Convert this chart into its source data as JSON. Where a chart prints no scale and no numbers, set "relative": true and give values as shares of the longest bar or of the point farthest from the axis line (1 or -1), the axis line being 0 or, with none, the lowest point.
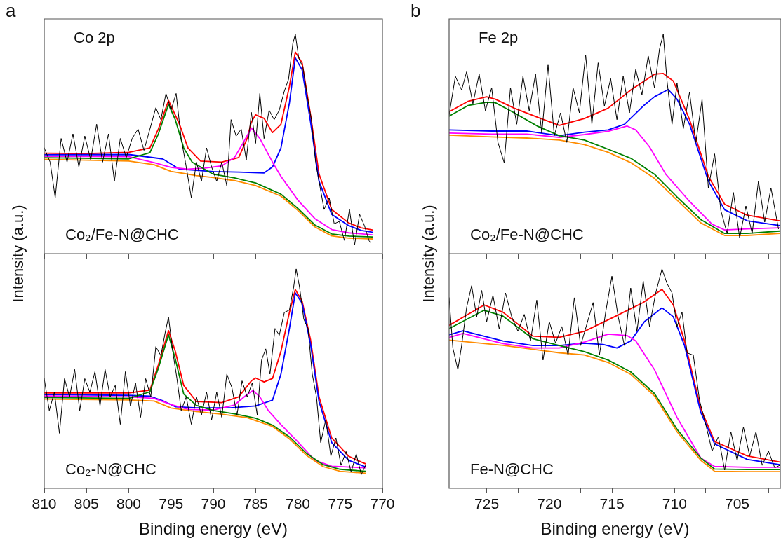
{
  "chart_data": [
    {
      "type": "line",
      "title": "a",
      "ylabel": "Intensity (a.u.)",
      "relative": true,
      "xlim": [
        810,
        770
      ],
      "xticks": [
        810,
        805,
        800,
        795,
        790,
        785,
        780,
        775,
        770
      ],
      "tick_labels": false,
      "annotations": [
        "Co 2p",
        "Co₂/Fe-N@CHC"
      ],
      "series": [
        {
          "color": "#000000",
          "x": [
            810,
            809.3,
            808.7,
            808,
            807.3,
            806.6,
            805.9,
            805.2,
            804.5,
            803.8,
            803.1,
            802.4,
            801.7,
            801,
            800.3,
            799.6,
            798.9,
            798.2,
            797.5,
            796.8,
            796.2,
            795.6,
            795,
            794.4,
            793.8,
            793.3,
            792.6,
            792,
            791.4,
            790.8,
            790.2,
            789.6,
            789,
            788.4,
            787.9,
            787.3,
            786.7,
            786.1,
            785.5,
            785,
            784.5,
            784,
            783.4,
            782.8,
            782.2,
            781.6,
            781.1,
            780.6,
            780.3,
            779.9,
            779.4,
            778.9,
            778.4,
            777.9,
            777.4,
            776.9,
            776.3,
            775.7,
            775.1,
            774.5,
            773.9,
            773.3,
            772.7,
            772.1,
            771.6,
            771.4
          ],
          "values": [
            0.482,
            0.417,
            0.255,
            0.525,
            0.417,
            0.546,
            0.395,
            0.536,
            0.428,
            0.59,
            0.417,
            0.546,
            0.33,
            0.525,
            0.438,
            0.525,
            0.568,
            0.471,
            0.568,
            0.665,
            0.611,
            0.73,
            0.654,
            0.73,
            0.525,
            0.417,
            0.255,
            0.417,
            0.33,
            0.482,
            0.395,
            0.33,
            0.417,
            0.309,
            0.611,
            0.536,
            0.568,
            0.428,
            0.644,
            0.503,
            0.73,
            0.525,
            0.654,
            0.611,
            0.654,
            0.741,
            0.795,
            0.957,
            1,
            0.892,
            0.849,
            0.719,
            0.611,
            0.417,
            0.309,
            0.201,
            0.255,
            0.136,
            0.147,
            0.06,
            0.201,
            0.039,
            0.179,
            0.125,
            0.06,
            0.05
          ]
        },
        {
          "color": "#ff8c00",
          "x": [
            810,
            800,
            797,
            795,
            792,
            790,
            787.5,
            785,
            782,
            780,
            778,
            776,
            774,
            771.2
          ],
          "values": [
            0.43,
            0.422,
            0.405,
            0.375,
            0.356,
            0.347,
            0.333,
            0.31,
            0.262,
            0.197,
            0.122,
            0.081,
            0.071,
            0.067
          ]
        },
        {
          "color": "#008000",
          "x": [
            810,
            800,
            797.5,
            796.5,
            795.3,
            794.5,
            793.5,
            792.5,
            790,
            787.5,
            785,
            782,
            780,
            778,
            776,
            774,
            771.2
          ],
          "values": [
            0.437,
            0.432,
            0.46,
            0.546,
            0.68,
            0.611,
            0.482,
            0.417,
            0.362,
            0.345,
            0.322,
            0.271,
            0.206,
            0.131,
            0.09,
            0.08,
            0.076
          ]
        },
        {
          "color": "#ff00ff",
          "x": [
            810,
            800,
            797,
            795,
            793,
            791,
            789,
            787.5,
            786.5,
            785.5,
            784.5,
            783,
            782,
            780,
            778,
            776,
            774,
            771.2
          ],
          "values": [
            0.444,
            0.442,
            0.415,
            0.393,
            0.385,
            0.39,
            0.4,
            0.438,
            0.503,
            0.573,
            0.525,
            0.417,
            0.352,
            0.244,
            0.16,
            0.11,
            0.095,
            0.086
          ]
        },
        {
          "color": "#0000ff",
          "x": [
            810,
            800,
            796,
            794,
            790,
            787,
            784,
            783,
            782,
            781,
            780.3,
            779.5,
            778.5,
            777.5,
            776,
            774,
            772.5,
            771.2
          ],
          "values": [
            0.451,
            0.452,
            0.432,
            0.385,
            0.374,
            0.372,
            0.368,
            0.395,
            0.482,
            0.687,
            0.892,
            0.838,
            0.6,
            0.33,
            0.179,
            0.128,
            0.106,
            0.098
          ]
        },
        {
          "color": "#ff0000",
          "x": [
            810,
            805,
            800,
            797.5,
            796.5,
            795.3,
            794,
            793,
            791.5,
            789,
            787,
            786,
            785.5,
            785,
            784,
            783,
            782,
            781,
            780.3,
            779.5,
            778.5,
            777.5,
            776,
            774,
            772.5,
            771.2
          ],
          "values": [
            0.458,
            0.456,
            0.462,
            0.482,
            0.568,
            0.698,
            0.59,
            0.482,
            0.422,
            0.417,
            0.438,
            0.525,
            0.6,
            0.633,
            0.617,
            0.552,
            0.59,
            0.762,
            0.919,
            0.87,
            0.633,
            0.363,
            0.201,
            0.14,
            0.118,
            0.108
          ]
        }
      ]
    },
    {
      "type": "line",
      "xlabel": "Binding energy (eV)",
      "relative": true,
      "xlim": [
        810,
        770
      ],
      "xticks": [
        810,
        805,
        800,
        795,
        790,
        785,
        780,
        775,
        770
      ],
      "tick_labels": "x",
      "annotations": [
        "Co₂-N@CHC"
      ],
      "series": [
        {
          "color": "#000000",
          "x": [
            810,
            809.4,
            808.8,
            808.2,
            807.6,
            807,
            806.4,
            805.8,
            805.2,
            804.6,
            804,
            803.4,
            802.8,
            802.2,
            801.6,
            801,
            800.4,
            799.8,
            799.2,
            798.6,
            798,
            797.4,
            796.8,
            796.2,
            795.7,
            795.3,
            794.8,
            794.3,
            793.8,
            793.2,
            792.6,
            792,
            791.4,
            790.8,
            790.2,
            789.6,
            789,
            788.4,
            787.8,
            787.2,
            786.6,
            786,
            785.4,
            784.8,
            784.3,
            783.8,
            783.3,
            782.7,
            782.2,
            781.6,
            781,
            780.5,
            780.2,
            779.8,
            779.3,
            778.8,
            778.3,
            777.8,
            777.3,
            776.7,
            776.1,
            775.5,
            774.9,
            774.3,
            773.7,
            773.1,
            772.5,
            772
          ],
          "values": [
            0.5,
            0.355,
            0.438,
            0.251,
            0.5,
            0.417,
            0.542,
            0.355,
            0.5,
            0.438,
            0.532,
            0.376,
            0.542,
            0.417,
            0.469,
            0.292,
            0.532,
            0.376,
            0.48,
            0.324,
            0.5,
            0.417,
            0.646,
            0.605,
            0.709,
            0.781,
            0.625,
            0.5,
            0.355,
            0.417,
            0.292,
            0.417,
            0.334,
            0.438,
            0.313,
            0.438,
            0.324,
            0.521,
            0.459,
            0.334,
            0.49,
            0.417,
            0.48,
            0.334,
            0.584,
            0.636,
            0.521,
            0.729,
            0.698,
            0.802,
            0.813,
            0.917,
            1,
            0.917,
            0.771,
            0.729,
            0.521,
            0.417,
            0.209,
            0.313,
            0.147,
            0.23,
            0.105,
            0.168,
            0.074,
            0.157,
            0.063,
            0.105
          ]
        },
        {
          "color": "#ff8c00",
          "x": [
            810,
            800,
            797,
            795,
            792,
            789,
            786,
            783,
            781,
            779,
            777,
            775,
            772
          ],
          "values": [
            0.407,
            0.403,
            0.398,
            0.366,
            0.35,
            0.338,
            0.322,
            0.282,
            0.226,
            0.151,
            0.099,
            0.078,
            0.069
          ]
        },
        {
          "color": "#008000",
          "x": [
            810,
            800,
            797.5,
            796.5,
            795.3,
            794.5,
            793.5,
            792,
            790,
            787.5,
            785,
            783,
            781,
            779,
            777,
            775,
            772
          ],
          "values": [
            0.414,
            0.41,
            0.44,
            0.548,
            0.7,
            0.59,
            0.43,
            0.378,
            0.355,
            0.34,
            0.32,
            0.288,
            0.235,
            0.16,
            0.108,
            0.087,
            0.078
          ]
        },
        {
          "color": "#ff00ff",
          "x": [
            810,
            800,
            797,
            795,
            793,
            790,
            787.5,
            786,
            785.3,
            784.5,
            783.5,
            782,
            780,
            778,
            776,
            772
          ],
          "values": [
            0.421,
            0.417,
            0.41,
            0.382,
            0.36,
            0.357,
            0.38,
            0.428,
            0.446,
            0.417,
            0.355,
            0.29,
            0.212,
            0.128,
            0.101,
            0.094
          ]
        },
        {
          "color": "#0000ff",
          "x": [
            810,
            800,
            797.5,
            796,
            794.5,
            792,
            788,
            785,
            783,
            782,
            781,
            780.3,
            779.5,
            778.5,
            777.5,
            776,
            774,
            772
          ],
          "values": [
            0.428,
            0.424,
            0.42,
            0.4,
            0.372,
            0.367,
            0.367,
            0.376,
            0.402,
            0.521,
            0.729,
            0.891,
            0.844,
            0.657,
            0.396,
            0.209,
            0.128,
            0.098
          ]
        },
        {
          "color": "#ff0000",
          "x": [
            810,
            800,
            797.5,
            796.5,
            795.3,
            794.5,
            793.5,
            792,
            789,
            787,
            785.5,
            785,
            784,
            783,
            782,
            781,
            780.3,
            779.5,
            778.5,
            777.5,
            776,
            774,
            772.5,
            772
          ],
          "values": [
            0.435,
            0.435,
            0.448,
            0.563,
            0.719,
            0.625,
            0.469,
            0.396,
            0.391,
            0.417,
            0.49,
            0.503,
            0.485,
            0.501,
            0.625,
            0.802,
            0.906,
            0.854,
            0.677,
            0.417,
            0.23,
            0.147,
            0.12,
            0.112
          ]
        }
      ]
    },
    {
      "type": "line",
      "title": "b",
      "ylabel": "Intensity (a.u.)",
      "relative": true,
      "xlim": [
        728,
        701.5
      ],
      "xticks": [
        {
          "value": 727.5,
          "label": null
        },
        725,
        {
          "value": 722.5,
          "label": null
        },
        720,
        {
          "value": 717.5,
          "label": null
        },
        715,
        {
          "value": 712.5,
          "label": null
        },
        710,
        {
          "value": 707.5,
          "label": null
        },
        705,
        {
          "value": 702.5,
          "label": null
        }
      ],
      "tick_labels": false,
      "annotations": [
        "Fe 2p",
        "Co₂/Fe-N@CHC"
      ],
      "series": [
        {
          "color": "#000000",
          "x": [
            728,
            727.5,
            727,
            726.6,
            726.1,
            725.6,
            725.1,
            724.6,
            724.1,
            723.6,
            723.1,
            722.6,
            722.1,
            721.6,
            721.1,
            720.6,
            720.1,
            719.6,
            719.1,
            718.6,
            718.1,
            717.6,
            717.1,
            716.6,
            716.1,
            715.6,
            715.1,
            714.6,
            714.1,
            713.6,
            713.1,
            712.6,
            712.1,
            711.6,
            711.2,
            710.9,
            710.6,
            710.2,
            709.8,
            709.3,
            708.8,
            708.3,
            707.8,
            707.3,
            706.8,
            706.3,
            705.8,
            705.3,
            704.8,
            704.3,
            703.8,
            703.3,
            702.8,
            702.3,
            701.7
          ],
          "values": [
            0.632,
            0.808,
            0.746,
            0.829,
            0.684,
            0.818,
            0.652,
            0.756,
            0.507,
            0.414,
            0.756,
            0.59,
            0.808,
            0.652,
            0.818,
            0.549,
            0.86,
            0.538,
            0.642,
            0.507,
            0.756,
            0.642,
            0.907,
            0.59,
            0.87,
            0.673,
            0.798,
            0.611,
            0.808,
            0.642,
            0.839,
            0.725,
            0.901,
            0.756,
            0.933,
            1,
            0.787,
            0.59,
            0.777,
            0.57,
            0.736,
            0.507,
            0.704,
            0.3,
            0.455,
            0.196,
            0.092,
            0.279,
            0.072,
            0.217,
            0.092,
            0.331,
            0.144,
            0.3,
            0.113
          ]
        },
        {
          "color": "#ff8c00",
          "x": [
            728,
            724.6,
            721.8,
            719.2,
            717.2,
            715.3,
            713.5,
            711.6,
            709.8,
            707.9,
            706,
            704.2,
            701.6
          ],
          "values": [
            0.54,
            0.532,
            0.527,
            0.518,
            0.497,
            0.462,
            0.415,
            0.343,
            0.244,
            0.14,
            0.083,
            0.083,
            0.092
          ]
        },
        {
          "color": "#008000",
          "x": [
            728,
            726.5,
            725,
            724.3,
            722.8,
            720.9,
            719.2,
            717.2,
            715.3,
            713.5,
            711.6,
            709.8,
            707.9,
            706,
            704.2,
            701.6
          ],
          "values": [
            0.627,
            0.675,
            0.69,
            0.688,
            0.642,
            0.58,
            0.538,
            0.518,
            0.476,
            0.435,
            0.362,
            0.258,
            0.155,
            0.092,
            0.092,
            0.103
          ]
        },
        {
          "color": "#ff00ff",
          "x": [
            728,
            724.6,
            721.8,
            719.2,
            717.2,
            715.3,
            713.8,
            713.1,
            712,
            710.7,
            708.8,
            707,
            706,
            704.2,
            701.6
          ],
          "values": [
            0.55,
            0.545,
            0.545,
            0.53,
            0.543,
            0.558,
            0.582,
            0.564,
            0.487,
            0.362,
            0.238,
            0.134,
            0.108,
            0.113,
            0.118
          ]
        },
        {
          "color": "#0000ff",
          "x": [
            728,
            724.6,
            721.8,
            719.2,
            717.2,
            715.3,
            714,
            712.5,
            711.6,
            710.5,
            709.8,
            708.8,
            707.3,
            706,
            704.2,
            701.6
          ],
          "values": [
            0.564,
            0.559,
            0.559,
            0.538,
            0.554,
            0.564,
            0.59,
            0.673,
            0.715,
            0.748,
            0.704,
            0.59,
            0.331,
            0.2,
            0.15,
            0.128
          ]
        },
        {
          "color": "#ff0000",
          "x": [
            728,
            726.5,
            725,
            724.3,
            722.8,
            720.9,
            719.2,
            717.2,
            715.3,
            713.5,
            711.6,
            710.9,
            710.1,
            708.8,
            707.3,
            706,
            704.2,
            701.6
          ],
          "values": [
            0.647,
            0.694,
            0.715,
            0.704,
            0.663,
            0.621,
            0.585,
            0.616,
            0.663,
            0.746,
            0.818,
            0.821,
            0.787,
            0.611,
            0.352,
            0.225,
            0.175,
            0.15
          ]
        }
      ]
    },
    {
      "type": "line",
      "xlabel": "Binding energy (eV)",
      "relative": true,
      "xlim": [
        728,
        701.5
      ],
      "xticks": [
        {
          "value": 727.5,
          "label": null
        },
        725,
        {
          "value": 722.5,
          "label": null
        },
        720,
        {
          "value": 717.5,
          "label": null
        },
        715,
        {
          "value": 712.5,
          "label": null
        },
        710,
        {
          "value": 707.5,
          "label": null
        },
        705,
        {
          "value": 702.5,
          "label": null
        }
      ],
      "tick_labels": "x",
      "annotations": [
        "Fe-N@CHC"
      ],
      "series": [
        {
          "color": "#000000",
          "x": [
            728,
            727.7,
            727.3,
            727,
            726.6,
            726.2,
            725.8,
            725.4,
            725,
            724.5,
            724,
            723.5,
            723,
            722.5,
            722,
            721.5,
            721,
            720.5,
            720,
            719.5,
            719,
            718.5,
            718,
            717.5,
            717,
            716.5,
            716,
            715.5,
            715,
            714.5,
            714,
            713.5,
            713,
            712.5,
            712,
            711.5,
            711,
            710.6,
            710.2,
            709.8,
            709.4,
            709,
            708.5,
            708,
            707.5,
            707,
            706.5,
            706,
            705.5,
            705,
            704.5,
            704,
            703.5,
            703,
            702.5,
            702,
            701.6
          ],
          "values": [
            0.869,
            0.64,
            0.541,
            0.651,
            0.825,
            0.924,
            0.782,
            0.902,
            0.76,
            0.88,
            0.727,
            0.891,
            0.782,
            0.716,
            0.793,
            0.672,
            0.858,
            0.585,
            0.76,
            0.662,
            0.738,
            0.607,
            0.869,
            0.651,
            0.749,
            0.847,
            0.607,
            0.803,
            0.967,
            0.782,
            0.651,
            0.913,
            0.716,
            0.945,
            0.738,
            0.891,
            1,
            0.934,
            0.891,
            0.738,
            0.803,
            0.618,
            0.607,
            0.4,
            0.29,
            0.17,
            0.236,
            0.083,
            0.258,
            0.127,
            0.279,
            0.148,
            0.258,
            0.105,
            0.17,
            0.094,
            0.105
          ]
        },
        {
          "color": "#ff8c00",
          "x": [
            728,
            723.7,
            719.2,
            717.2,
            715.3,
            713.5,
            711.6,
            709.8,
            707.9,
            706.8,
            704.2,
            701.6
          ],
          "values": [
            0.676,
            0.652,
            0.618,
            0.608,
            0.574,
            0.52,
            0.421,
            0.258,
            0.128,
            0.078,
            0.076,
            0.076
          ]
        },
        {
          "color": "#008000",
          "x": [
            728,
            725.2,
            723.7,
            721.3,
            719.2,
            717.2,
            715.3,
            713.5,
            711.6,
            709.8,
            707.9,
            706.8,
            704.2,
            701.6
          ],
          "values": [
            0.728,
            0.812,
            0.785,
            0.682,
            0.651,
            0.623,
            0.585,
            0.531,
            0.432,
            0.269,
            0.138,
            0.088,
            0.086,
            0.086
          ]
        },
        {
          "color": "#ff00ff",
          "x": [
            728,
            726.9,
            723.7,
            721.3,
            719.2,
            717.2,
            715.3,
            713.8,
            713.1,
            711.6,
            709.8,
            707.9,
            706.8,
            704.2,
            701.6
          ],
          "values": [
            0.688,
            0.706,
            0.66,
            0.64,
            0.64,
            0.667,
            0.703,
            0.697,
            0.672,
            0.541,
            0.323,
            0.138,
            0.1,
            0.096,
            0.096
          ]
        },
        {
          "color": "#0000ff",
          "x": [
            728,
            726.9,
            723.7,
            721.3,
            719.2,
            717.2,
            715.7,
            714.6,
            713.5,
            712.4,
            711,
            710.1,
            709.2,
            707.9,
            706.8,
            704.2,
            701.6
          ],
          "values": [
            0.7,
            0.718,
            0.672,
            0.651,
            0.651,
            0.662,
            0.656,
            0.64,
            0.672,
            0.76,
            0.823,
            0.782,
            0.651,
            0.345,
            0.203,
            0.132,
            0.108
          ]
        },
        {
          "color": "#ff0000",
          "x": [
            728,
            725.2,
            723.7,
            721.3,
            719.2,
            717.2,
            714.8,
            712.5,
            711,
            710.1,
            709.2,
            707.9,
            706.8,
            704.2,
            701.6
          ],
          "values": [
            0.743,
            0.836,
            0.803,
            0.694,
            0.689,
            0.716,
            0.782,
            0.847,
            0.907,
            0.836,
            0.672,
            0.362,
            0.214,
            0.148,
            0.12
          ]
        }
      ]
    }
  ]
}
